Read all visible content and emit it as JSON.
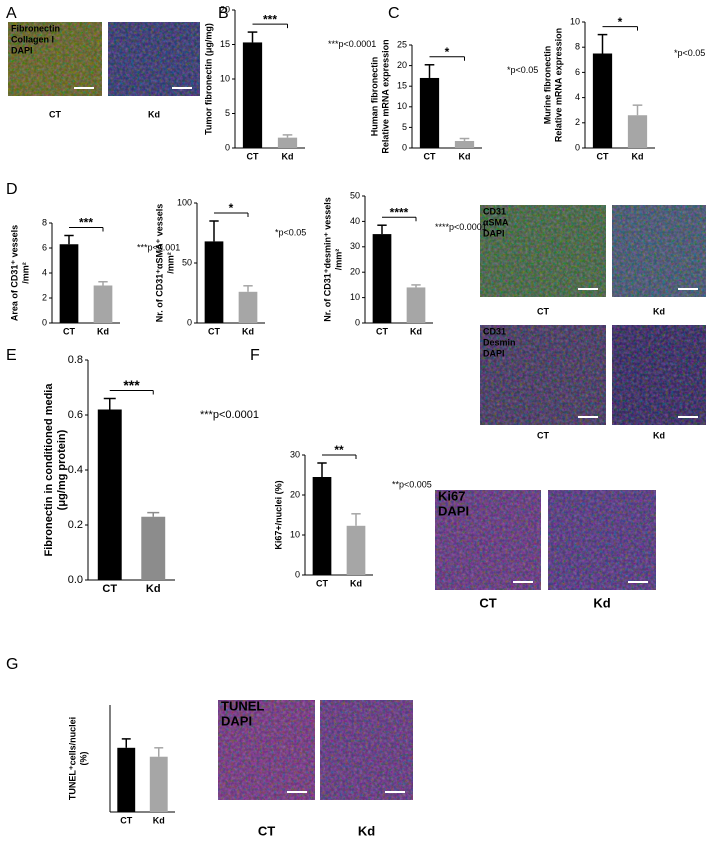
{
  "panels": [
    "A",
    "B",
    "C",
    "D",
    "E",
    "F",
    "G"
  ],
  "micrographs": [
    {
      "stains": [
        "Fibronectin",
        "Collagen I",
        "DAPI"
      ],
      "groups": [
        "CT",
        "Kd"
      ]
    },
    {
      "stains": [
        "CD31",
        "αSMA",
        "DAPI"
      ],
      "groups": [
        "CT",
        "Kd"
      ]
    },
    {
      "stains": [
        "CD31",
        "Desmin",
        "DAPI"
      ],
      "groups": [
        "CT",
        "Kd"
      ]
    },
    {
      "stains": [
        "Ki67",
        "DAPI"
      ],
      "groups": [
        "CT",
        "Kd"
      ]
    },
    {
      "stains": [
        "TUNEL",
        "DAPI"
      ],
      "groups": [
        "CT",
        "Kd"
      ]
    }
  ],
  "chart_data": [
    {
      "type": "bar",
      "ylabel": [
        "Tumor fibronectin (μg/mg)"
      ],
      "categories": [
        "CT",
        "Kd"
      ],
      "values": [
        15.3,
        1.5
      ],
      "errors": [
        1.5,
        0.4
      ],
      "colors": [
        "#000000",
        "#a6a6a6"
      ],
      "ylim": [
        0,
        20
      ],
      "yticks": [
        0,
        5,
        10,
        15,
        20
      ],
      "significance": "***",
      "pvalue": "***p<0.0001"
    },
    {
      "type": "bar",
      "ylabel": [
        "Human fibronectin",
        "Relative mRNA expression"
      ],
      "categories": [
        "CT",
        "Kd"
      ],
      "values": [
        17,
        1.7
      ],
      "errors": [
        3.2,
        0.6
      ],
      "colors": [
        "#000000",
        "#a6a6a6"
      ],
      "ylim": [
        0,
        25
      ],
      "yticks": [
        0,
        5,
        10,
        15,
        20,
        25
      ],
      "significance": "*",
      "pvalue": "*p<0.05"
    },
    {
      "type": "bar",
      "ylabel": [
        "Murine fibronectin",
        "Relative mRNA expression"
      ],
      "categories": [
        "CT",
        "Kd"
      ],
      "values": [
        7.5,
        2.6
      ],
      "errors": [
        1.5,
        0.8
      ],
      "colors": [
        "#000000",
        "#a6a6a6"
      ],
      "ylim": [
        0,
        10
      ],
      "yticks": [
        0,
        2,
        4,
        6,
        8,
        10
      ],
      "significance": "*",
      "pvalue": "*p<0.05"
    },
    {
      "type": "bar",
      "ylabel": [
        "Area of CD31⁺ vessels",
        "/mm²"
      ],
      "categories": [
        "CT",
        "Kd"
      ],
      "values": [
        6.3,
        3.0
      ],
      "errors": [
        0.7,
        0.3
      ],
      "colors": [
        "#000000",
        "#a6a6a6"
      ],
      "ylim": [
        0,
        8
      ],
      "yticks": [
        0,
        2,
        4,
        6,
        8
      ],
      "significance": "***",
      "pvalue": "***p<0.001"
    },
    {
      "type": "bar",
      "ylabel": [
        "Nr. of CD31⁺αSMA⁺ vessels",
        "/mm²"
      ],
      "categories": [
        "CT",
        "Kd"
      ],
      "values": [
        68,
        26
      ],
      "errors": [
        17,
        5
      ],
      "colors": [
        "#000000",
        "#a6a6a6"
      ],
      "ylim": [
        0,
        100
      ],
      "yticks": [
        0,
        50,
        100
      ],
      "significance": "*",
      "pvalue": "*p<0.05"
    },
    {
      "type": "bar",
      "ylabel": [
        "Nr. of CD31⁺desmin⁺ vessels",
        "/mm²"
      ],
      "categories": [
        "CT",
        "Kd"
      ],
      "values": [
        35,
        14
      ],
      "errors": [
        3.5,
        1
      ],
      "colors": [
        "#000000",
        "#a6a6a6"
      ],
      "ylim": [
        0,
        50
      ],
      "yticks": [
        0,
        10,
        20,
        30,
        40,
        50
      ],
      "significance": "****",
      "pvalue": "****p<0.0001"
    },
    {
      "type": "bar",
      "ylabel": [
        "Fibronectin in conditioned media",
        "(μg/mg protein)"
      ],
      "categories": [
        "CT",
        "Kd"
      ],
      "values": [
        0.62,
        0.23
      ],
      "errors": [
        0.04,
        0.015
      ],
      "colors": [
        "#000000",
        "#8c8c8c"
      ],
      "ylim": [
        0,
        0.8
      ],
      "yticks": [
        {
          "value": 0,
          "label": "0.0"
        },
        0.2,
        0.4,
        0.6,
        0.8
      ],
      "significance": "***",
      "pvalue": "***p<0.0001"
    },
    {
      "type": "bar",
      "ylabel": [
        "Ki67+/nuclei (%)"
      ],
      "categories": [
        "CT",
        "Kd"
      ],
      "values": [
        24.5,
        12.3
      ],
      "errors": [
        3.5,
        3
      ],
      "colors": [
        "#000000",
        "#a6a6a6"
      ],
      "ylim": [
        0,
        30
      ],
      "yticks": [
        0,
        10,
        20,
        30
      ],
      "significance": "**",
      "pvalue": "**p<0.005"
    },
    {
      "type": "bar",
      "ylabel": [
        "TUNEL⁺cells/nuclei",
        "(%)"
      ],
      "categories": [
        "CT",
        "Kd"
      ],
      "values": [
        36,
        31
      ],
      "errors": [
        5,
        5
      ],
      "colors": [
        "#000000",
        "#a6a6a6"
      ],
      "ylim": [
        0,
        60
      ]
    }
  ]
}
